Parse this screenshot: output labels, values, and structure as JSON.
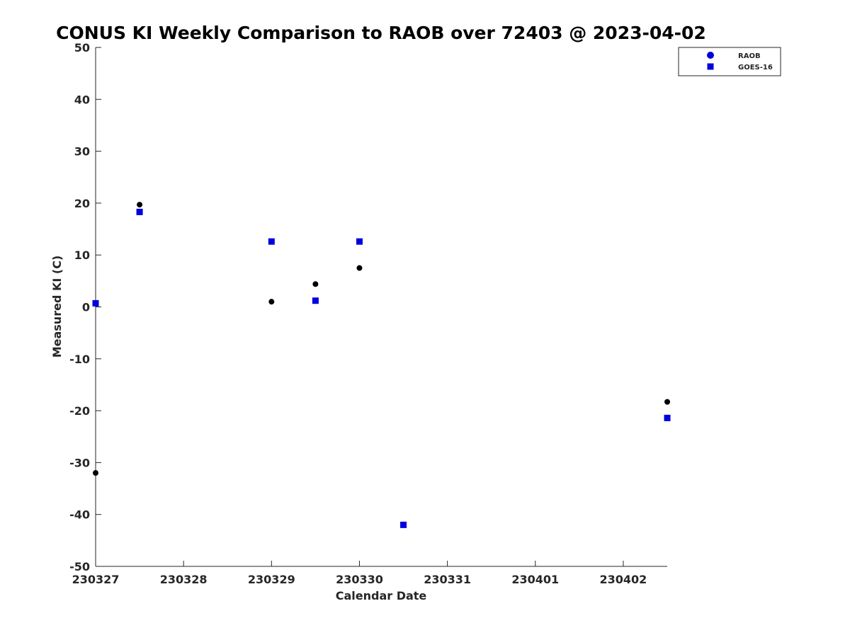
{
  "chart_data": {
    "type": "scatter",
    "title": "CONUS KI Weekly Comparison to RAOB over 72403 @ 2023-04-02",
    "xlabel": "Calendar Date",
    "ylabel": "Measured KI (C)",
    "xlim": [
      0,
      6.5
    ],
    "ylim": [
      -50,
      50
    ],
    "x_ticks": [
      0,
      1,
      2,
      3,
      4,
      5,
      6
    ],
    "x_tick_labels": [
      "230327",
      "230328",
      "230329",
      "230330",
      "230331",
      "230401",
      "230402"
    ],
    "y_ticks": [
      50,
      40,
      30,
      20,
      10,
      0,
      -10,
      -20,
      -30,
      -40,
      -50
    ],
    "y_tick_labels": [
      "50",
      "40",
      "30",
      "20",
      "10",
      "0",
      "-10",
      "-20",
      "-30",
      "-40",
      "-50"
    ],
    "legend_position": "top-right",
    "grid": false,
    "series": [
      {
        "name": "RAOB",
        "marker": "circle",
        "color": "#000000",
        "legend_color": "#0000dd",
        "x": [
          0,
          0.5,
          2,
          2.5,
          3,
          6.5
        ],
        "y": [
          -32,
          19.7,
          1,
          4.4,
          7.5,
          -18.3
        ]
      },
      {
        "name": "GOES-16",
        "marker": "square",
        "color": "#0000dd",
        "legend_color": "#0000dd",
        "x": [
          0,
          0.5,
          2,
          2.5,
          3,
          3.5,
          6.5
        ],
        "y": [
          0.7,
          18.3,
          12.6,
          1.2,
          12.6,
          -42,
          -21.4
        ]
      }
    ]
  }
}
